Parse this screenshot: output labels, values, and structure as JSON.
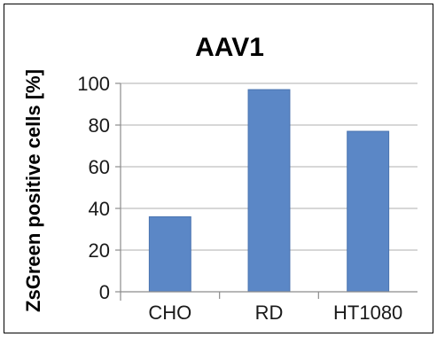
{
  "chart_data": {
    "type": "bar",
    "title": "AAV1",
    "xlabel": "",
    "ylabel": "ZsGreen positive cells [%]",
    "categories": [
      "CHO",
      "RD",
      "HT1080"
    ],
    "values": [
      36,
      97,
      77
    ],
    "ylim": [
      0,
      100
    ],
    "yticks": [
      0,
      20,
      40,
      60,
      80,
      100
    ],
    "grid": true,
    "legend": "none",
    "colors": {
      "bar": "#5b87c6",
      "bar_edge": "#4a74b0",
      "grid": "#bfbfbf",
      "axis": "#8c8c8c"
    }
  }
}
